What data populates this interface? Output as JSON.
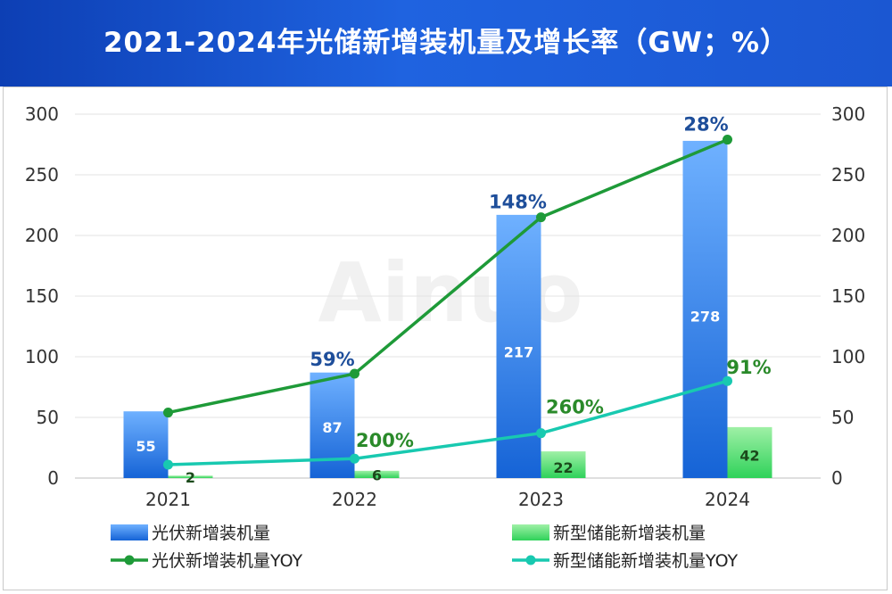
{
  "title": "2021-2024年光储新增装机量及增长率（GW；%）",
  "watermark": "Ainuo",
  "colors": {
    "pv_bar_top": "#6fb1ff",
    "pv_bar_bottom": "#1563d6",
    "es_bar_top": "#9ff0a6",
    "es_bar_bottom": "#2fd25a",
    "pv_yoy_line": "#1e9a38",
    "es_yoy_line": "#18c9b0"
  },
  "chart_data": {
    "type": "bar",
    "categories": [
      "2021",
      "2022",
      "2023",
      "2024"
    ],
    "ylim": [
      0,
      300
    ],
    "y_ticks": [
      0,
      50,
      100,
      150,
      200,
      250,
      300
    ],
    "y2lim": [
      0,
      300
    ],
    "y2_ticks": [
      0,
      50,
      100,
      150,
      200,
      250,
      300
    ],
    "grid": true,
    "legend_position": "bottom",
    "series": [
      {
        "name": "光伏新增装机量",
        "type": "bar",
        "values": [
          55,
          87,
          217,
          278
        ],
        "labels": [
          "55",
          "87",
          "217",
          "278"
        ]
      },
      {
        "name": "新型储能新增装机量",
        "type": "bar",
        "values": [
          2,
          6,
          22,
          42
        ],
        "labels": [
          "2",
          "6",
          "22",
          "42"
        ]
      },
      {
        "name": "光伏新增装机量YOY",
        "type": "line",
        "axis": "right",
        "values": [
          54,
          86,
          215,
          279
        ],
        "labels": [
          "",
          "59%",
          "148%",
          "28%"
        ]
      },
      {
        "name": "新型储能新增装机量YOY",
        "type": "line",
        "axis": "right",
        "values": [
          11,
          16,
          37,
          80
        ],
        "labels": [
          "",
          "200%",
          "260%",
          "91%"
        ]
      }
    ]
  }
}
